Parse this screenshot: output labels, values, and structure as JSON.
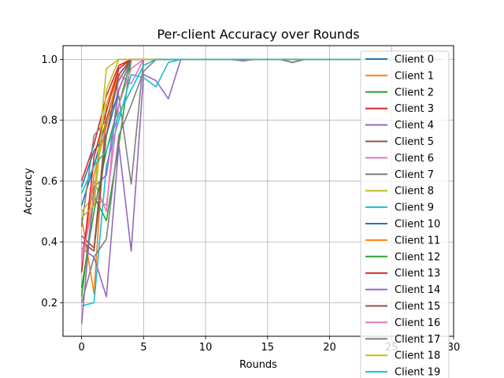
{
  "chart_data": {
    "type": "line",
    "title": "Per-client Accuracy over Rounds",
    "xlabel": "Rounds",
    "ylabel": "Accuracy",
    "xlim": [
      -1.5,
      30
    ],
    "ylim": [
      0.09,
      1.045
    ],
    "xticks": [
      0,
      5,
      10,
      15,
      20,
      25,
      30
    ],
    "yticks": [
      0.2,
      0.4,
      0.6,
      0.8,
      1.0
    ],
    "xtick_labels": [
      "0",
      "5",
      "10",
      "15",
      "20",
      "25",
      "30"
    ],
    "ytick_labels": [
      "0.2",
      "0.4",
      "0.6",
      "0.8",
      "1.0"
    ],
    "grid": true,
    "legend_placement": "right",
    "x": [
      0,
      1,
      2,
      3,
      4,
      5,
      6,
      7,
      8,
      9,
      10,
      11,
      12,
      13,
      14,
      15,
      16,
      17,
      18,
      19,
      20,
      21,
      22,
      23,
      24,
      25,
      26,
      27,
      28,
      29
    ],
    "series": [
      {
        "name": "Client 0",
        "color": "#1f77b4",
        "values": [
          0.52,
          0.65,
          0.8,
          0.95,
          1.0,
          1.0,
          1.0,
          1.0,
          1.0,
          1.0,
          1.0,
          1.0,
          1.0,
          1.0,
          1.0,
          1.0,
          1.0,
          1.0,
          1.0,
          1.0,
          1.0,
          1.0,
          1.0,
          1.0,
          1.0,
          1.0,
          1.0,
          1.0,
          1.0,
          1.0
        ]
      },
      {
        "name": "Client 1",
        "color": "#ff7f0e",
        "values": [
          0.48,
          0.23,
          0.85,
          0.97,
          1.0,
          1.0,
          1.0,
          1.0,
          1.0,
          1.0,
          1.0,
          1.0,
          1.0,
          1.0,
          1.0,
          1.0,
          1.0,
          1.0,
          1.0,
          1.0,
          1.0,
          1.0,
          1.0,
          1.0,
          1.0,
          1.0,
          1.0,
          1.0,
          1.0,
          1.0
        ]
      },
      {
        "name": "Client 2",
        "color": "#2ca02c",
        "values": [
          0.22,
          0.55,
          0.47,
          0.72,
          1.0,
          1.0,
          1.0,
          1.0,
          1.0,
          1.0,
          1.0,
          1.0,
          1.0,
          1.0,
          1.0,
          1.0,
          1.0,
          1.0,
          1.0,
          1.0,
          1.0,
          1.0,
          1.0,
          1.0,
          1.0,
          1.0,
          1.0,
          1.0,
          1.0,
          1.0
        ]
      },
      {
        "name": "Client 3",
        "color": "#d62728",
        "values": [
          0.6,
          0.72,
          0.88,
          0.98,
          1.0,
          1.0,
          1.0,
          1.0,
          1.0,
          1.0,
          1.0,
          1.0,
          1.0,
          1.0,
          1.0,
          1.0,
          1.0,
          1.0,
          1.0,
          1.0,
          1.0,
          1.0,
          1.0,
          1.0,
          1.0,
          1.0,
          1.0,
          1.0,
          1.0,
          1.0
        ]
      },
      {
        "name": "Client 4",
        "color": "#9467bd",
        "values": [
          0.38,
          0.35,
          0.22,
          0.72,
          0.37,
          0.95,
          0.93,
          0.87,
          1.0,
          1.0,
          1.0,
          1.0,
          1.0,
          1.0,
          1.0,
          1.0,
          1.0,
          1.0,
          1.0,
          1.0,
          1.0,
          1.0,
          1.0,
          1.0,
          1.0,
          1.0,
          1.0,
          1.0,
          1.0,
          1.0
        ]
      },
      {
        "name": "Client 5",
        "color": "#8c564b",
        "values": [
          0.42,
          0.38,
          0.8,
          0.93,
          1.0,
          1.0,
          1.0,
          1.0,
          1.0,
          1.0,
          1.0,
          1.0,
          1.0,
          1.0,
          1.0,
          1.0,
          1.0,
          1.0,
          1.0,
          1.0,
          1.0,
          1.0,
          1.0,
          1.0,
          1.0,
          1.0,
          1.0,
          1.0,
          1.0,
          1.0
        ]
      },
      {
        "name": "Client 6",
        "color": "#e377c2",
        "values": [
          0.35,
          0.6,
          0.5,
          0.95,
          0.92,
          1.0,
          1.0,
          1.0,
          1.0,
          1.0,
          1.0,
          1.0,
          1.0,
          1.0,
          1.0,
          1.0,
          1.0,
          1.0,
          1.0,
          1.0,
          1.0,
          1.0,
          1.0,
          1.0,
          1.0,
          1.0,
          1.0,
          1.0,
          1.0,
          1.0
        ]
      },
      {
        "name": "Client 7",
        "color": "#7f7f7f",
        "values": [
          0.45,
          0.75,
          0.8,
          0.88,
          0.59,
          1.0,
          1.0,
          1.0,
          1.0,
          1.0,
          1.0,
          1.0,
          1.0,
          1.0,
          1.0,
          1.0,
          1.0,
          0.99,
          1.0,
          1.0,
          1.0,
          1.0,
          1.0,
          1.0,
          1.0,
          1.0,
          1.0,
          1.0,
          1.0,
          1.0
        ]
      },
      {
        "name": "Client 8",
        "color": "#bcbd22",
        "values": [
          0.5,
          0.55,
          0.97,
          1.0,
          1.0,
          1.0,
          1.0,
          1.0,
          1.0,
          1.0,
          1.0,
          1.0,
          1.0,
          1.0,
          1.0,
          1.0,
          1.0,
          1.0,
          1.0,
          1.0,
          1.0,
          1.0,
          1.0,
          1.0,
          1.0,
          1.0,
          1.0,
          1.0,
          1.0,
          1.0
        ]
      },
      {
        "name": "Client 9",
        "color": "#17becf",
        "values": [
          0.19,
          0.2,
          0.65,
          0.8,
          0.95,
          0.94,
          0.91,
          0.99,
          1.0,
          1.0,
          1.0,
          1.0,
          1.0,
          1.0,
          1.0,
          1.0,
          1.0,
          1.0,
          1.0,
          1.0,
          1.0,
          1.0,
          1.0,
          1.0,
          1.0,
          1.0,
          1.0,
          1.0,
          1.0,
          1.0
        ]
      },
      {
        "name": "Client 10",
        "color": "#1f77b4",
        "values": [
          0.58,
          0.7,
          0.75,
          0.9,
          1.0,
          1.0,
          1.0,
          1.0,
          1.0,
          1.0,
          1.0,
          1.0,
          1.0,
          1.0,
          1.0,
          1.0,
          1.0,
          1.0,
          1.0,
          1.0,
          1.0,
          1.0,
          1.0,
          1.0,
          1.0,
          1.0,
          1.0,
          1.0,
          1.0,
          1.0
        ]
      },
      {
        "name": "Client 11",
        "color": "#ff7f0e",
        "values": [
          0.3,
          0.62,
          0.78,
          0.97,
          1.0,
          1.0,
          1.0,
          1.0,
          1.0,
          1.0,
          1.0,
          1.0,
          1.0,
          1.0,
          1.0,
          1.0,
          1.0,
          1.0,
          1.0,
          1.0,
          1.0,
          1.0,
          1.0,
          1.0,
          1.0,
          1.0,
          1.0,
          1.0,
          1.0,
          1.0
        ]
      },
      {
        "name": "Client 12",
        "color": "#2ca02c",
        "values": [
          0.25,
          0.5,
          0.7,
          0.85,
          1.0,
          1.0,
          1.0,
          1.0,
          1.0,
          1.0,
          1.0,
          1.0,
          1.0,
          1.0,
          1.0,
          1.0,
          1.0,
          1.0,
          1.0,
          1.0,
          1.0,
          1.0,
          1.0,
          1.0,
          1.0,
          1.0,
          1.0,
          1.0,
          1.0,
          1.0
        ]
      },
      {
        "name": "Client 13",
        "color": "#d62728",
        "values": [
          0.3,
          0.68,
          0.83,
          0.97,
          1.0,
          1.0,
          1.0,
          1.0,
          1.0,
          1.0,
          1.0,
          1.0,
          1.0,
          1.0,
          1.0,
          1.0,
          1.0,
          1.0,
          1.0,
          1.0,
          1.0,
          1.0,
          1.0,
          1.0,
          1.0,
          1.0,
          1.0,
          1.0,
          1.0,
          1.0
        ]
      },
      {
        "name": "Client 14",
        "color": "#9467bd",
        "values": [
          0.13,
          0.58,
          0.62,
          0.9,
          1.0,
          1.0,
          1.0,
          1.0,
          1.0,
          1.0,
          1.0,
          1.0,
          1.0,
          0.995,
          1.0,
          1.0,
          1.0,
          1.0,
          1.0,
          1.0,
          1.0,
          1.0,
          1.0,
          1.0,
          1.0,
          1.0,
          1.0,
          1.0,
          1.0,
          1.0
        ]
      },
      {
        "name": "Client 15",
        "color": "#8c564b",
        "values": [
          0.4,
          0.37,
          0.75,
          0.95,
          1.0,
          1.0,
          1.0,
          1.0,
          1.0,
          1.0,
          1.0,
          1.0,
          1.0,
          1.0,
          1.0,
          1.0,
          1.0,
          1.0,
          1.0,
          1.0,
          1.0,
          1.0,
          1.0,
          1.0,
          1.0,
          1.0,
          1.0,
          1.0,
          1.0,
          1.0
        ]
      },
      {
        "name": "Client 16",
        "color": "#e377c2",
        "values": [
          0.33,
          0.55,
          0.52,
          0.85,
          0.97,
          1.0,
          1.0,
          1.0,
          1.0,
          1.0,
          1.0,
          1.0,
          1.0,
          1.0,
          1.0,
          1.0,
          1.0,
          1.0,
          1.0,
          1.0,
          1.0,
          1.0,
          1.0,
          1.0,
          1.0,
          1.0,
          1.0,
          1.0,
          1.0,
          1.0
        ]
      },
      {
        "name": "Client 17",
        "color": "#7f7f7f",
        "values": [
          0.2,
          0.35,
          0.41,
          0.75,
          0.85,
          0.96,
          1.0,
          1.0,
          1.0,
          1.0,
          1.0,
          1.0,
          1.0,
          1.0,
          1.0,
          1.0,
          1.0,
          0.99,
          1.0,
          1.0,
          1.0,
          1.0,
          1.0,
          1.0,
          1.0,
          1.0,
          1.0,
          1.0,
          1.0,
          1.0
        ]
      },
      {
        "name": "Client 18",
        "color": "#bcbd22",
        "values": [
          0.48,
          0.52,
          0.9,
          1.0,
          1.0,
          1.0,
          1.0,
          1.0,
          1.0,
          1.0,
          1.0,
          1.0,
          1.0,
          1.0,
          1.0,
          1.0,
          1.0,
          1.0,
          1.0,
          1.0,
          1.0,
          1.0,
          1.0,
          1.0,
          1.0,
          1.0,
          1.0,
          1.0,
          1.0,
          1.0
        ]
      },
      {
        "name": "Client 19",
        "color": "#17becf",
        "values": [
          0.56,
          0.65,
          0.7,
          0.82,
          0.9,
          0.98,
          1.0,
          1.0,
          1.0,
          1.0,
          1.0,
          1.0,
          1.0,
          1.0,
          1.0,
          1.0,
          1.0,
          1.0,
          1.0,
          1.0,
          1.0,
          1.0,
          1.0,
          1.0,
          1.0,
          1.0,
          1.0,
          1.0,
          1.0,
          1.0
        ]
      }
    ]
  }
}
